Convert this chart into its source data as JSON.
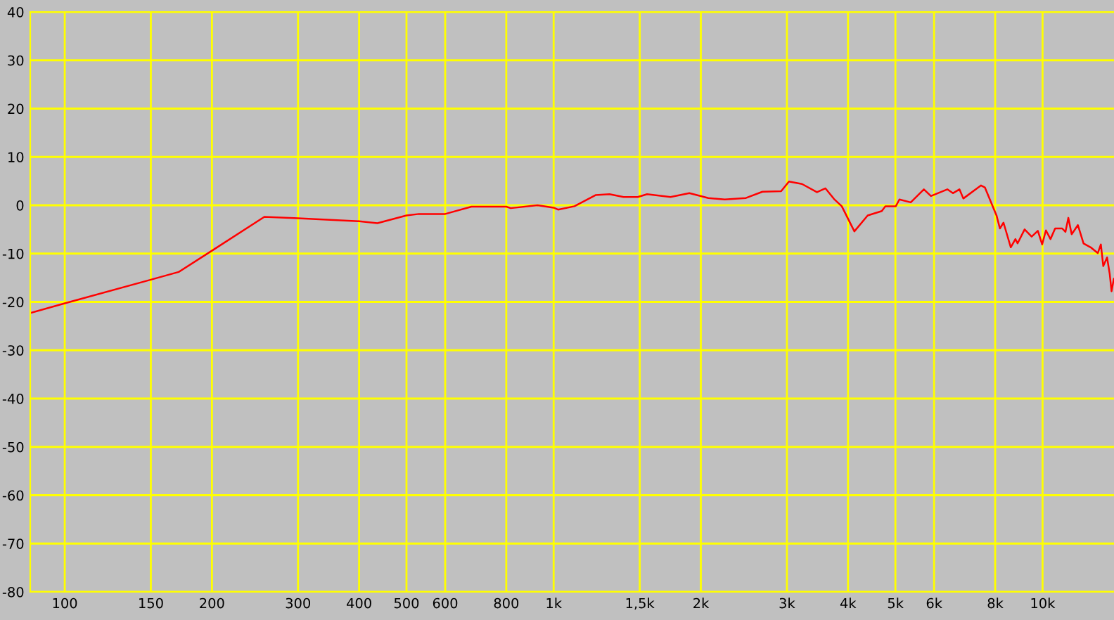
{
  "chart_data": {
    "type": "line",
    "log": "x",
    "grid": true,
    "marker": "none",
    "line_style": "solid",
    "xlim": [
      85,
      14000
    ],
    "ylim": [
      -80,
      40
    ],
    "xticks": [
      100,
      150,
      200,
      300,
      400,
      500,
      600,
      800,
      {
        "value": 1000,
        "label": "1k"
      },
      {
        "value": 1500,
        "label": "1,5k"
      },
      {
        "value": 2000,
        "label": "2k"
      },
      {
        "value": 3000,
        "label": "3k"
      },
      {
        "value": 4000,
        "label": "4k"
      },
      {
        "value": 5000,
        "label": "5k"
      },
      {
        "value": 6000,
        "label": "6k"
      },
      {
        "value": 8000,
        "label": "8k"
      },
      {
        "value": 10000,
        "label": "10k"
      }
    ],
    "yticks": [
      -80,
      -70,
      -60,
      -50,
      -40,
      -30,
      -20,
      -10,
      0,
      10,
      20,
      30,
      40
    ],
    "series": [
      {
        "color": "#ff0000",
        "x": [
          85,
          100,
          150,
          171,
          200,
          256,
          300,
          400,
          436,
          500,
          530,
          600,
          679,
          800,
          817,
          927,
          1000,
          1021,
          1103,
          1218,
          1301,
          1390,
          1486,
          1553,
          1734,
          1895,
          2072,
          2239,
          2473,
          2673,
          2919,
          3029,
          3221,
          3456,
          3597,
          3745,
          3884,
          4122,
          4389,
          4690,
          4770,
          5010,
          5096,
          5375,
          5718,
          5911,
          6386,
          6556,
          6761,
          6886,
          7484,
          7620,
          8050,
          8180,
          8320,
          8610,
          8800,
          8890,
          9190,
          9500,
          9780,
          9980,
          10160,
          10380,
          10610,
          10970,
          11140,
          11290,
          11470,
          11810,
          12130,
          12540,
          12970,
          13160,
          13310,
          13550,
          13720,
          13840,
          13990
        ],
        "values": [
          -22.3,
          -20.3,
          -15.4,
          -13.8,
          -9.4,
          -2.4,
          -2.7,
          -3.3,
          -3.7,
          -2.1,
          -1.8,
          -1.8,
          -0.3,
          -0.3,
          -0.6,
          0.0,
          -0.5,
          -0.9,
          -0.2,
          2.1,
          2.3,
          1.7,
          1.7,
          2.3,
          1.7,
          2.5,
          1.5,
          1.2,
          1.5,
          2.8,
          2.9,
          4.9,
          4.4,
          2.7,
          3.5,
          1.3,
          -0.2,
          -5.4,
          -2.1,
          -1.2,
          -0.2,
          -0.2,
          1.2,
          0.6,
          3.3,
          1.9,
          3.3,
          2.5,
          3.3,
          1.4,
          4.1,
          3.7,
          -2.1,
          -4.8,
          -3.6,
          -8.7,
          -7.0,
          -7.9,
          -5.0,
          -6.5,
          -5.3,
          -8.1,
          -5.2,
          -7.0,
          -4.8,
          -4.8,
          -5.5,
          -2.6,
          -6.0,
          -4.1,
          -7.9,
          -8.7,
          -9.9,
          -8.1,
          -12.6,
          -10.8,
          -14.2,
          -17.8,
          -15.2
        ]
      }
    ]
  }
}
